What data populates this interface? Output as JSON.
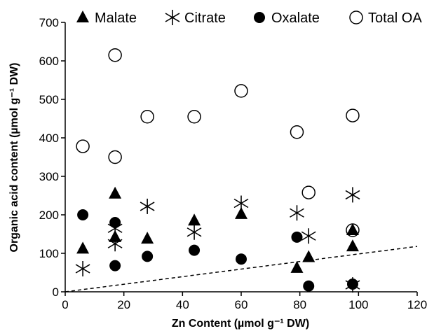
{
  "chart_data": {
    "type": "scatter",
    "title": "",
    "xlabel": "Zn Content (µmol g⁻¹ DW)",
    "ylabel": "Organic acid content (µmol g⁻¹ DW)",
    "xlim": [
      0,
      120
    ],
    "ylim": [
      0,
      700
    ],
    "xticks": [
      "0",
      "20",
      "40",
      "60",
      "80",
      "100",
      "120"
    ],
    "yticks": [
      "0",
      "100",
      "200",
      "300",
      "400",
      "500",
      "600",
      "700"
    ],
    "grid": false,
    "legend_position": "top",
    "series": [
      {
        "name": "Malate",
        "marker": "triangle",
        "points": [
          [
            6,
            112
          ],
          [
            17,
            142
          ],
          [
            17,
            255
          ],
          [
            28,
            138
          ],
          [
            44,
            185
          ],
          [
            60,
            202
          ],
          [
            79,
            62
          ],
          [
            83,
            90
          ],
          [
            98,
            160
          ],
          [
            98,
            118
          ]
        ]
      },
      {
        "name": "Citrate",
        "marker": "asterisk",
        "points": [
          [
            6,
            60
          ],
          [
            17,
            125
          ],
          [
            17,
            165
          ],
          [
            28,
            222
          ],
          [
            44,
            155
          ],
          [
            60,
            230
          ],
          [
            79,
            205
          ],
          [
            83,
            145
          ],
          [
            98,
            252
          ],
          [
            98,
            18
          ]
        ]
      },
      {
        "name": "Oxalate",
        "marker": "filled-circle",
        "points": [
          [
            6,
            200
          ],
          [
            17,
            68
          ],
          [
            17,
            180
          ],
          [
            28,
            92
          ],
          [
            44,
            108
          ],
          [
            60,
            85
          ],
          [
            79,
            142
          ],
          [
            83,
            15
          ],
          [
            98,
            20
          ]
        ]
      },
      {
        "name": "Total OA",
        "marker": "open-circle",
        "points": [
          [
            6,
            378
          ],
          [
            17,
            615
          ],
          [
            17,
            350
          ],
          [
            28,
            455
          ],
          [
            44,
            455
          ],
          [
            60,
            522
          ],
          [
            79,
            415
          ],
          [
            83,
            258
          ],
          [
            98,
            458
          ],
          [
            98,
            160
          ]
        ]
      }
    ],
    "reference_line": {
      "style": "dashed",
      "from": [
        0,
        0
      ],
      "to": [
        120,
        118
      ]
    }
  }
}
